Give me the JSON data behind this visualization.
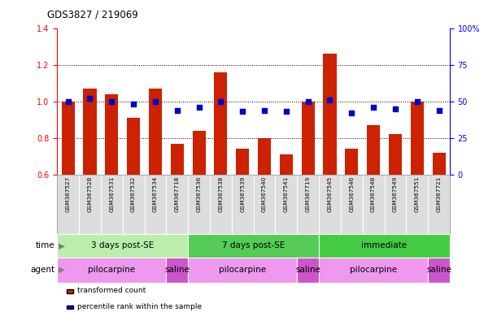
{
  "title": "GDS3827 / 219069",
  "samples": [
    "GSM367527",
    "GSM367528",
    "GSM367531",
    "GSM367532",
    "GSM367534",
    "GSM367718",
    "GSM367536",
    "GSM367538",
    "GSM367539",
    "GSM367540",
    "GSM367541",
    "GSM367719",
    "GSM367545",
    "GSM367546",
    "GSM367548",
    "GSM367549",
    "GSM367551",
    "GSM367721"
  ],
  "red_values": [
    1.0,
    1.07,
    1.04,
    0.91,
    1.07,
    0.77,
    0.84,
    1.16,
    0.74,
    0.8,
    0.71,
    1.0,
    1.26,
    0.74,
    0.87,
    0.82,
    1.0,
    0.72
  ],
  "blue_values": [
    50,
    52,
    50,
    48,
    50,
    44,
    46,
    50,
    43,
    44,
    43,
    50,
    51,
    42,
    46,
    45,
    50,
    44
  ],
  "ylim_left": [
    0.6,
    1.4
  ],
  "ylim_right": [
    0,
    100
  ],
  "yticks_left": [
    0.6,
    0.8,
    1.0,
    1.2,
    1.4
  ],
  "yticks_right": [
    0,
    25,
    50,
    75,
    100
  ],
  "ytick_labels_right": [
    "0",
    "25",
    "50",
    "75",
    "100%"
  ],
  "grid_values": [
    0.8,
    1.0,
    1.2
  ],
  "bar_color": "#cc2200",
  "dot_color": "#0000cc",
  "background_color": "#ffffff",
  "time_groups": [
    {
      "label": "3 days post-SE",
      "start": 0,
      "end": 5,
      "color": "#bbeeaa"
    },
    {
      "label": "7 days post-SE",
      "start": 6,
      "end": 11,
      "color": "#55cc55"
    },
    {
      "label": "immediate",
      "start": 12,
      "end": 17,
      "color": "#44cc44"
    }
  ],
  "agent_groups": [
    {
      "label": "pilocarpine",
      "start": 0,
      "end": 4,
      "color": "#ee99ee"
    },
    {
      "label": "saline",
      "start": 5,
      "end": 5,
      "color": "#cc55cc"
    },
    {
      "label": "pilocarpine",
      "start": 6,
      "end": 10,
      "color": "#ee99ee"
    },
    {
      "label": "saline",
      "start": 11,
      "end": 11,
      "color": "#cc55cc"
    },
    {
      "label": "pilocarpine",
      "start": 12,
      "end": 16,
      "color": "#ee99ee"
    },
    {
      "label": "saline",
      "start": 17,
      "end": 17,
      "color": "#cc55cc"
    }
  ],
  "legend_items": [
    {
      "label": "transformed count",
      "color": "#cc2200"
    },
    {
      "label": "percentile rank within the sample",
      "color": "#0000cc"
    }
  ]
}
